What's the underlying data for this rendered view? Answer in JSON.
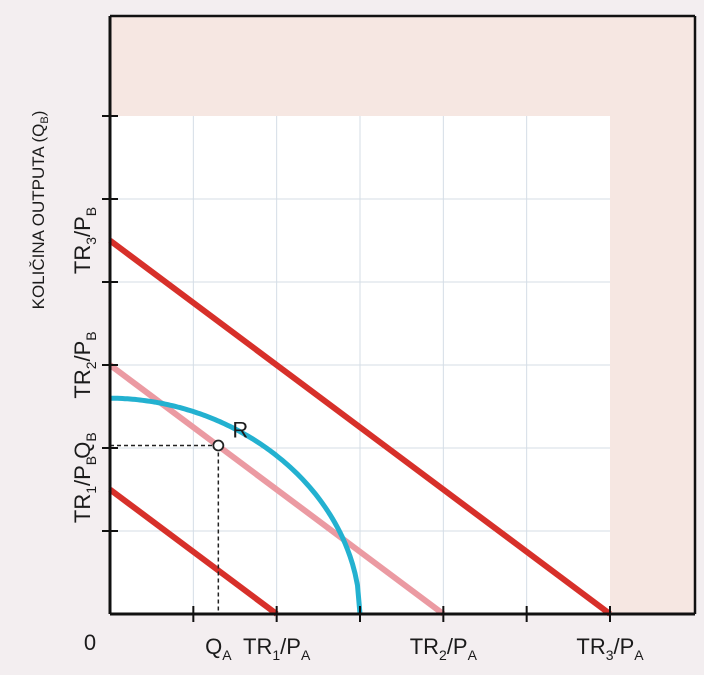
{
  "chart_data": {
    "type": "line",
    "title": "",
    "ylabel": "KOLIČINA OUTPUTA (Q",
    "ylabel_sub": "B",
    "ylabel_close": ")",
    "xlim": [
      0,
      6
    ],
    "ylim": [
      0,
      6
    ],
    "grid": true,
    "origin_label": "0",
    "x_ticks": [
      1,
      2,
      3,
      4,
      5,
      6
    ],
    "y_ticks": [
      1,
      2,
      3,
      4,
      5,
      6
    ],
    "x_labels": [
      {
        "x": 1.3,
        "main": "Q",
        "sub": "A",
        "suffix": ""
      },
      {
        "x": 2.0,
        "main": "TR",
        "sub": "1",
        "suffix": "/P",
        "sub2": "A"
      },
      {
        "x": 4.0,
        "main": "TR",
        "sub": "2",
        "suffix": "/P",
        "sub2": "A"
      },
      {
        "x": 6.0,
        "main": "TR",
        "sub": "3",
        "suffix": "/P",
        "sub2": "A"
      }
    ],
    "y_labels": [
      {
        "y": 1.5,
        "main": "TR",
        "sub": "1",
        "suffix": "/P",
        "sub2": "B"
      },
      {
        "y": 2.03,
        "main": "Q",
        "sub": "B",
        "suffix": ""
      },
      {
        "y": 3.0,
        "main": "TR",
        "sub": "2",
        "suffix": "/P",
        "sub2": "B"
      },
      {
        "y": 4.5,
        "main": "TR",
        "sub": "3",
        "suffix": "/P",
        "sub2": "B"
      }
    ],
    "series": [
      {
        "points": [
          [
            0,
            1.5
          ],
          [
            2,
            0
          ]
        ],
        "color": "#d7302a"
      },
      {
        "points": [
          [
            0,
            3.0
          ],
          [
            4,
            0
          ]
        ],
        "color": "#eb9aa2"
      },
      {
        "points": [
          [
            0,
            4.5
          ],
          [
            6,
            0
          ]
        ],
        "color": "#d7302a"
      },
      {
        "curve": "ppf",
        "x_intercept": 3.0,
        "y_intercept": 2.6,
        "exponent": 1.95,
        "color": "#23b1d0"
      }
    ],
    "point": {
      "label": "R",
      "x": 1.3,
      "y": 2.03
    }
  }
}
